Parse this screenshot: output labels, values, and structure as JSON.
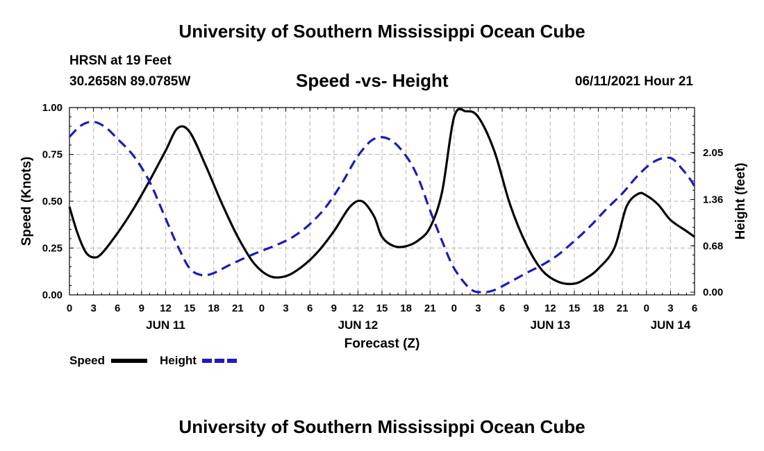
{
  "header": {
    "top_title": "University of Southern Mississippi Ocean Cube",
    "station": "HRSN at 19 Feet",
    "coords": "30.2658N  89.0785W",
    "chart_title": "Speed -vs- Height",
    "date": "06/11/2021 Hour 21",
    "bottom_title": "University of Southern Mississippi Ocean Cube"
  },
  "chart_data": {
    "type": "line",
    "title": "Speed -vs- Height",
    "xlabel": "Forecast (Z)",
    "ylabel": "Speed (Knots)",
    "y2label": "Height (feet)",
    "x_unit": "hours since 2021-06-11 00Z",
    "xlim": [
      0,
      78
    ],
    "ylim": [
      0,
      1.0
    ],
    "y2lim": [
      -0.04,
      2.71
    ],
    "x_ticks": [
      0,
      3,
      6,
      9,
      12,
      15,
      18,
      21,
      24,
      27,
      30,
      33,
      36,
      39,
      42,
      45,
      48,
      51,
      54,
      57,
      60,
      63,
      66,
      69,
      72,
      75,
      78
    ],
    "x_tick_labels": [
      "0",
      "3",
      "6",
      "9",
      "12",
      "15",
      "18",
      "21",
      "0",
      "3",
      "6",
      "9",
      "12",
      "15",
      "18",
      "21",
      "0",
      "3",
      "6",
      "9",
      "12",
      "15",
      "18",
      "21",
      "0",
      "3",
      "6"
    ],
    "day_labels": [
      {
        "x": 12,
        "label": "JUN 11"
      },
      {
        "x": 36,
        "label": "JUN 12"
      },
      {
        "x": 60,
        "label": "JUN 13"
      },
      {
        "x": 75,
        "label": "JUN 14"
      }
    ],
    "y_ticks": [
      0,
      0.25,
      0.5,
      0.75,
      1.0
    ],
    "y_tick_labels": [
      "0.00",
      "0.25",
      "0.50",
      "0.75",
      "1.00"
    ],
    "y2_ticks": [
      0.0,
      0.68,
      1.36,
      2.05
    ],
    "y2_tick_labels": [
      "0.00",
      "0.68",
      "1.36",
      "2.05"
    ],
    "grid": true,
    "legend": "bottom-left",
    "series": [
      {
        "name": "Speed",
        "axis": "left",
        "color": "#000000",
        "style": "solid",
        "x": [
          0,
          1,
          2,
          3,
          4,
          6,
          8,
          10,
          12,
          13.5,
          15,
          17,
          19,
          21,
          23,
          25,
          27,
          29,
          31,
          33,
          35,
          36.5,
          38,
          39,
          40.5,
          42,
          43.5,
          45,
          46.5,
          48,
          49.5,
          51,
          53,
          55,
          57,
          59,
          61,
          63,
          64.5,
          66,
          68,
          69.5,
          71,
          72,
          73.5,
          75,
          77,
          78
        ],
        "values": [
          0.47,
          0.33,
          0.23,
          0.2,
          0.22,
          0.33,
          0.46,
          0.61,
          0.77,
          0.89,
          0.87,
          0.69,
          0.49,
          0.31,
          0.17,
          0.1,
          0.1,
          0.15,
          0.23,
          0.34,
          0.47,
          0.5,
          0.42,
          0.31,
          0.26,
          0.26,
          0.29,
          0.36,
          0.55,
          0.95,
          0.98,
          0.95,
          0.77,
          0.48,
          0.27,
          0.13,
          0.07,
          0.06,
          0.09,
          0.14,
          0.25,
          0.47,
          0.54,
          0.53,
          0.48,
          0.4,
          0.34,
          0.31
        ]
      },
      {
        "name": "Height",
        "axis": "right",
        "color": "#1a1acc",
        "style": "dashed",
        "x": [
          0,
          1.5,
          3,
          4.5,
          6,
          8,
          10,
          12,
          13.5,
          15,
          16.5,
          18,
          20,
          23,
          26,
          28,
          30,
          32,
          34,
          36,
          38,
          40,
          42,
          43.5,
          45,
          46.5,
          48,
          50,
          51.5,
          53,
          55,
          57,
          59,
          61,
          63,
          65,
          67,
          69,
          71,
          73,
          75,
          76.5,
          77.5,
          78
        ],
        "values": [
          2.28,
          2.45,
          2.5,
          2.42,
          2.25,
          2.0,
          1.62,
          1.08,
          0.68,
          0.35,
          0.25,
          0.28,
          0.4,
          0.56,
          0.7,
          0.82,
          1.0,
          1.25,
          1.6,
          2.0,
          2.25,
          2.24,
          2.0,
          1.68,
          1.2,
          0.75,
          0.35,
          0.05,
          0.0,
          0.03,
          0.15,
          0.28,
          0.4,
          0.55,
          0.75,
          0.97,
          1.22,
          1.45,
          1.72,
          1.92,
          1.97,
          1.8,
          1.65,
          1.55
        ]
      }
    ]
  }
}
